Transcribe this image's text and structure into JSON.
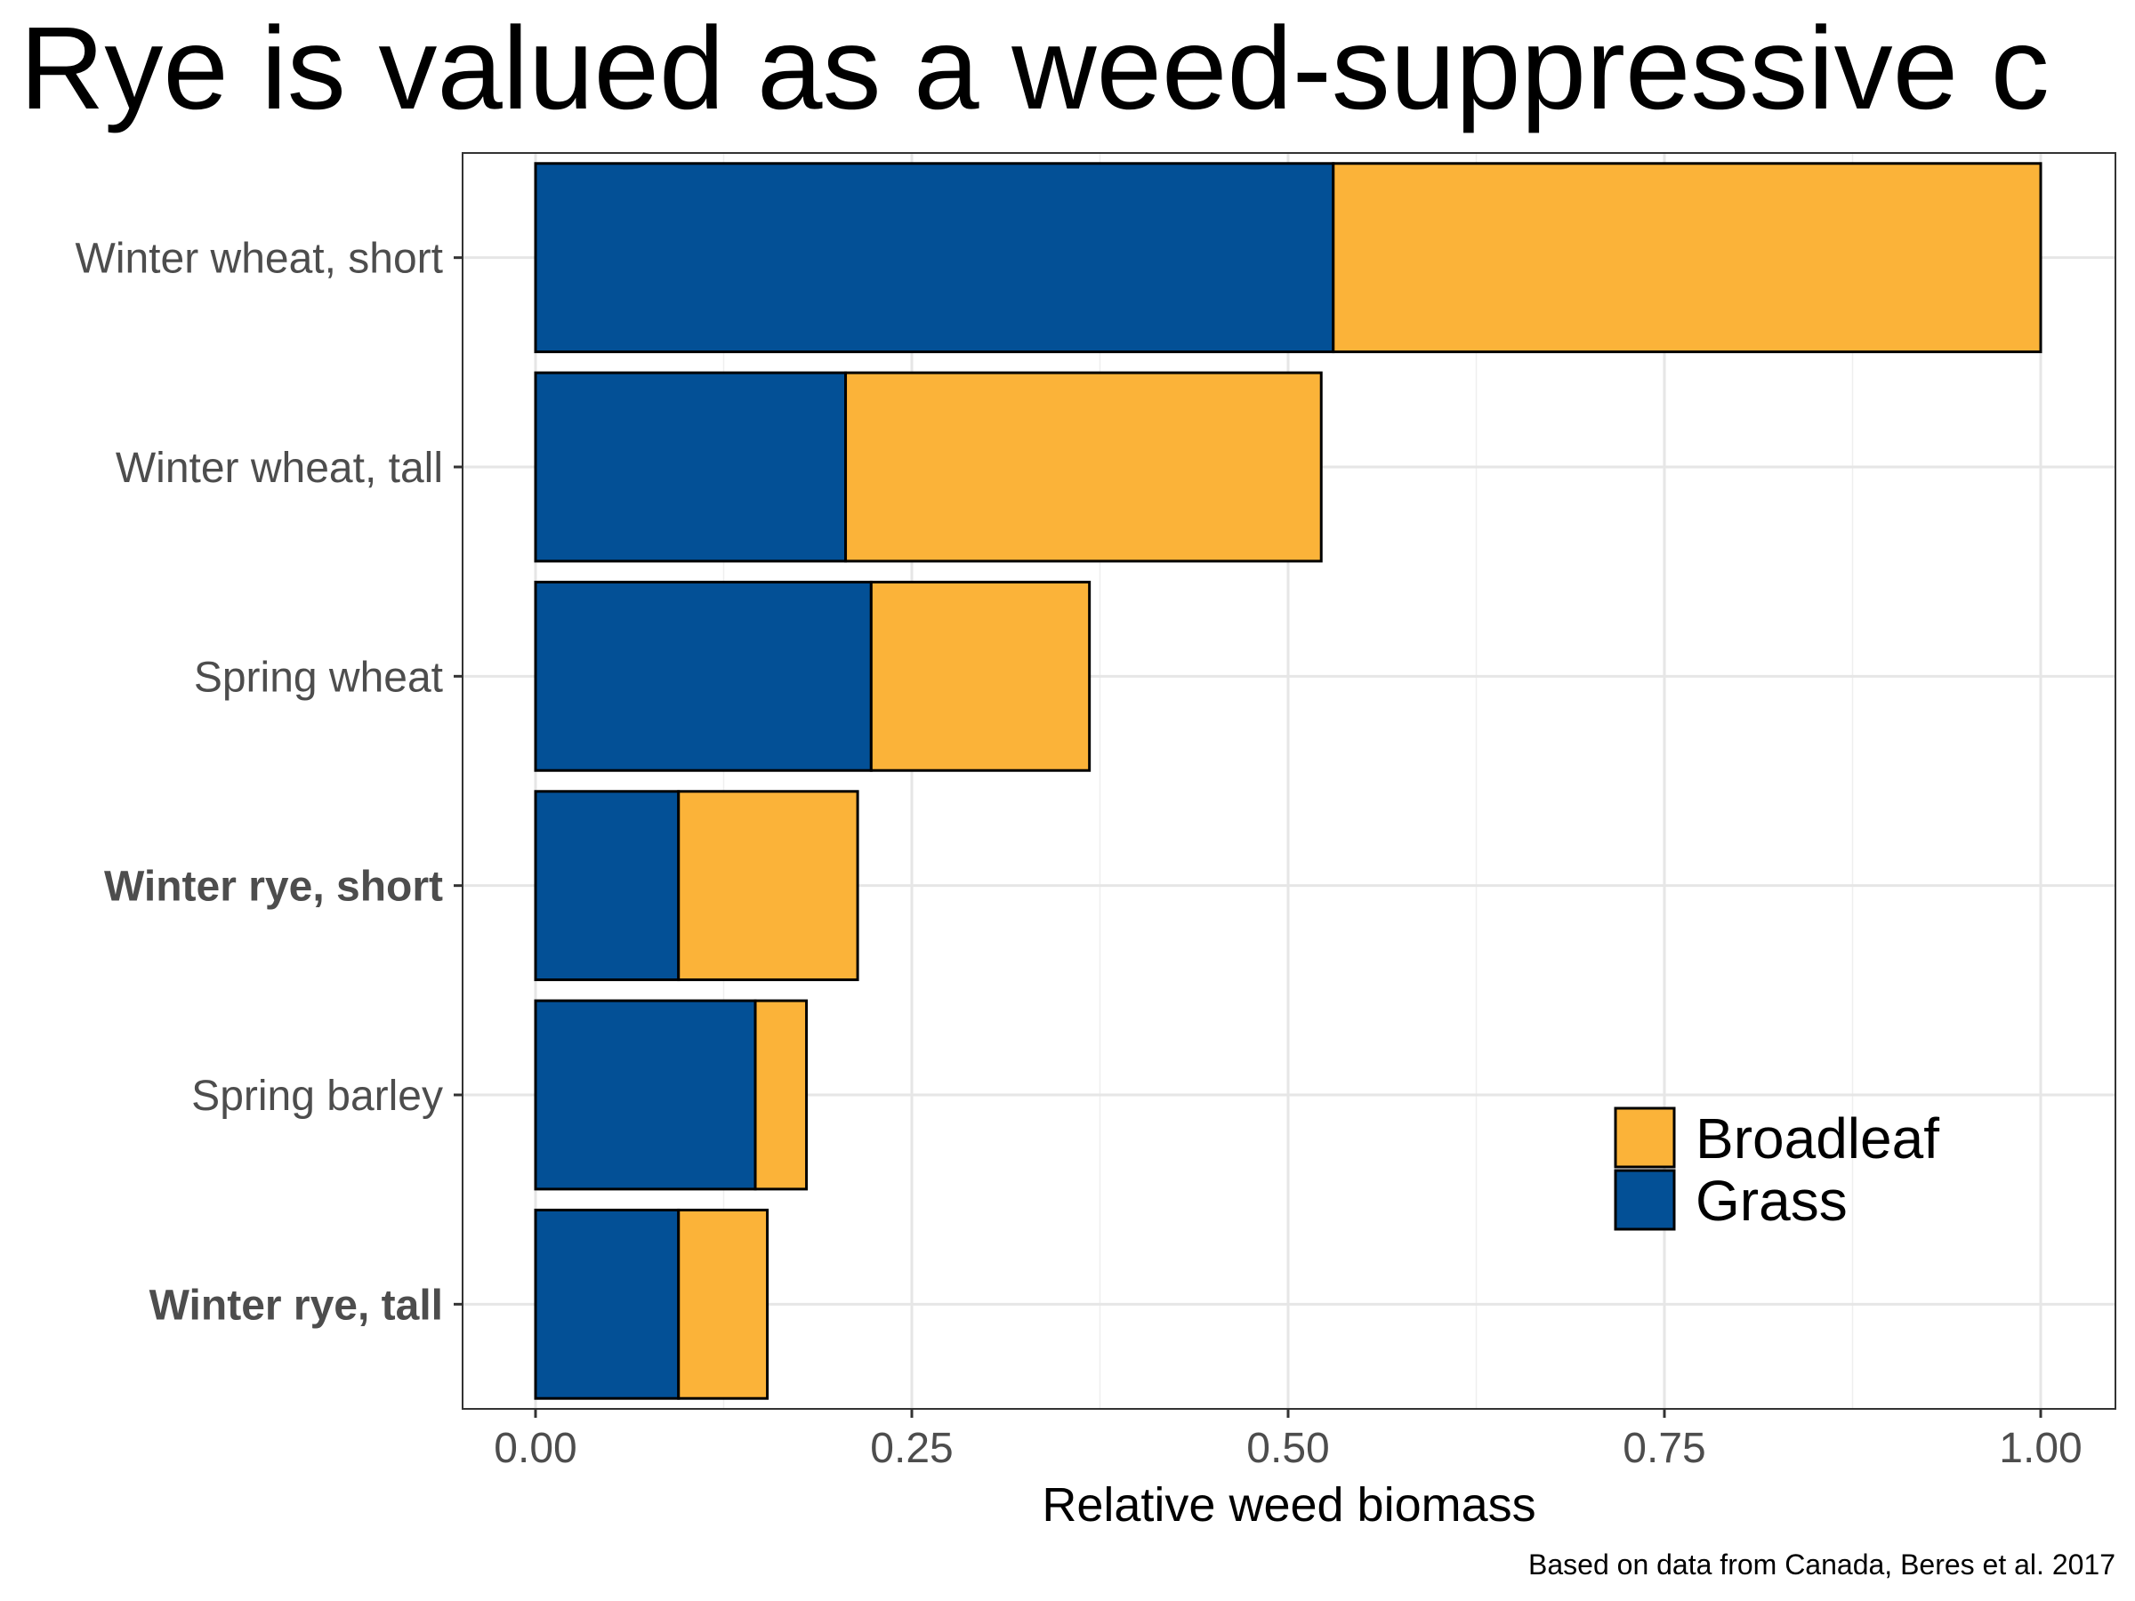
{
  "chart_data": {
    "type": "bar",
    "orientation": "horizontal",
    "stacked": true,
    "title": "Rye is valued as a weed-suppressive c",
    "xlabel": "Relative weed biomass",
    "ylabel": "",
    "caption": "Based on data from Canada, Beres et al. 2017",
    "xlim": [
      -0.074,
      1.04
    ],
    "x_ticks": [
      "0.00",
      "0.25",
      "0.50",
      "0.75",
      "1.00"
    ],
    "grid": true,
    "legend_position": "bottom-right",
    "categories": [
      "Winter wheat, short",
      "Winter wheat, tall",
      "Spring wheat",
      "Winter rye, short",
      "Spring barley",
      "Winter rye, tall"
    ],
    "bold_categories": [
      "Winter rye, short",
      "Winter rye, tall"
    ],
    "series": [
      {
        "name": "Grass",
        "color": "#035096",
        "values": [
          0.53,
          0.206,
          0.223,
          0.095,
          0.146,
          0.095
        ]
      },
      {
        "name": "Broadleaf",
        "color": "#FBB339",
        "values": [
          0.47,
          0.316,
          0.145,
          0.119,
          0.034,
          0.059
        ]
      }
    ],
    "legend": [
      {
        "name": "Broadleaf",
        "color": "#FBB339"
      },
      {
        "name": "Grass",
        "color": "#035096"
      }
    ]
  }
}
